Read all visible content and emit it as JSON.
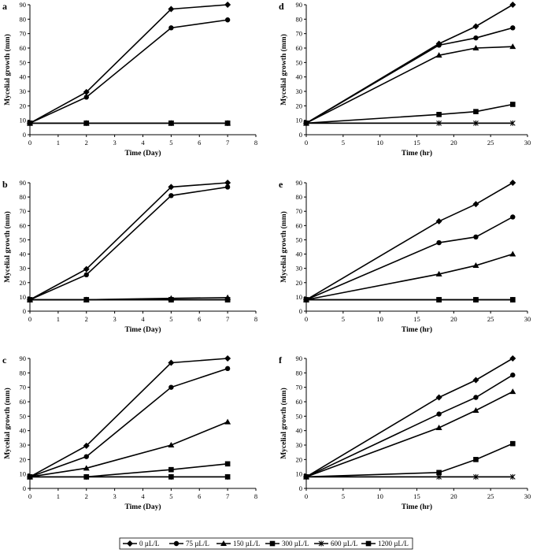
{
  "legend": [
    {
      "name": "0 µL/L",
      "marker": "diamond"
    },
    {
      "name": "75 µL/L",
      "marker": "circle"
    },
    {
      "name": "150 µL/L",
      "marker": "triangle"
    },
    {
      "name": "300 µL/L",
      "marker": "square"
    },
    {
      "name": "600 µL/L",
      "marker": "star"
    },
    {
      "name": "1200 µL/L",
      "marker": "square"
    }
  ],
  "chart_data": [
    {
      "panel": "a",
      "type": "line",
      "xlabel": "Time (Day)",
      "ylabel": "Mycelial growth (mm)",
      "xlim": [
        0,
        8
      ],
      "ylim": [
        0,
        90
      ],
      "xticks": [
        "0",
        "1",
        "2",
        "3",
        "4",
        "5",
        "6",
        "7",
        "8"
      ],
      "yticks": [
        "0",
        "10",
        "20",
        "30",
        "40",
        "50",
        "60",
        "70",
        "80",
        "90"
      ],
      "x": [
        0,
        2,
        5,
        7
      ],
      "series": [
        {
          "name": "0 µL/L",
          "marker": "diamond",
          "values": [
            8,
            29.5,
            87,
            90
          ]
        },
        {
          "name": "75 µL/L",
          "marker": "circle",
          "values": [
            8,
            26,
            74,
            79.5
          ]
        },
        {
          "name": "150 µL/L",
          "marker": "triangle",
          "values": [
            8,
            8,
            8,
            8
          ]
        },
        {
          "name": "300 µL/L",
          "marker": "square",
          "values": [
            8,
            8,
            8,
            8
          ]
        },
        {
          "name": "600 µL/L",
          "marker": "star",
          "values": [
            8,
            8,
            8,
            8
          ]
        },
        {
          "name": "1200 µL/L",
          "marker": "square",
          "values": [
            8,
            8,
            8,
            8
          ]
        }
      ]
    },
    {
      "panel": "b",
      "type": "line",
      "xlabel": "Time (Day)",
      "ylabel": "Mycelial growth (mm)",
      "xlim": [
        0,
        8
      ],
      "ylim": [
        0,
        90
      ],
      "xticks": [
        "0",
        "1",
        "2",
        "3",
        "4",
        "5",
        "6",
        "7",
        "8"
      ],
      "yticks": [
        "0",
        "10",
        "20",
        "30",
        "40",
        "50",
        "60",
        "70",
        "80",
        "90"
      ],
      "x": [
        0,
        2,
        5,
        7
      ],
      "series": [
        {
          "name": "0 µL/L",
          "marker": "diamond",
          "values": [
            8,
            29.5,
            87,
            90
          ]
        },
        {
          "name": "75 µL/L",
          "marker": "circle",
          "values": [
            8,
            25.5,
            81,
            87
          ]
        },
        {
          "name": "150 µL/L",
          "marker": "triangle",
          "values": [
            8,
            8,
            9,
            9.5
          ]
        },
        {
          "name": "300 µL/L",
          "marker": "square",
          "values": [
            8,
            8,
            8,
            8
          ]
        },
        {
          "name": "600 µL/L",
          "marker": "star",
          "values": [
            8,
            8,
            8,
            8
          ]
        },
        {
          "name": "1200 µL/L",
          "marker": "square",
          "values": [
            8,
            8,
            8,
            8
          ]
        }
      ]
    },
    {
      "panel": "c",
      "type": "line",
      "xlabel": "Time (Day)",
      "ylabel": "Mycelial growth (mm)",
      "xlim": [
        0,
        8
      ],
      "ylim": [
        0,
        90
      ],
      "xticks": [
        "0",
        "1",
        "2",
        "3",
        "4",
        "5",
        "6",
        "7",
        "8"
      ],
      "yticks": [
        "0",
        "10",
        "20",
        "30",
        "40",
        "50",
        "60",
        "70",
        "80",
        "90"
      ],
      "x": [
        0,
        2,
        5,
        7
      ],
      "series": [
        {
          "name": "0 µL/L",
          "marker": "diamond",
          "values": [
            8,
            29.5,
            87,
            90
          ]
        },
        {
          "name": "75 µL/L",
          "marker": "circle",
          "values": [
            8,
            22,
            70,
            83
          ]
        },
        {
          "name": "150 µL/L",
          "marker": "triangle",
          "values": [
            8,
            14,
            30,
            46
          ]
        },
        {
          "name": "300 µL/L",
          "marker": "square",
          "values": [
            8,
            8,
            13,
            17
          ]
        },
        {
          "name": "600 µL/L",
          "marker": "star",
          "values": [
            8,
            8,
            8,
            8
          ]
        },
        {
          "name": "1200 µL/L",
          "marker": "square",
          "values": [
            8,
            8,
            8,
            8
          ]
        }
      ]
    },
    {
      "panel": "d",
      "type": "line",
      "xlabel": "Time (hr)",
      "ylabel": "Mycelial growth (mm)",
      "xlim": [
        0,
        30
      ],
      "ylim": [
        0,
        90
      ],
      "xticks": [
        "0",
        "5",
        "10",
        "15",
        "20",
        "25",
        "30"
      ],
      "yticks": [
        "0",
        "10",
        "20",
        "30",
        "40",
        "50",
        "60",
        "70",
        "80",
        "90"
      ],
      "x": [
        0,
        18,
        23,
        28
      ],
      "series": [
        {
          "name": "0 µL/L",
          "marker": "diamond",
          "values": [
            8,
            63,
            75,
            90
          ]
        },
        {
          "name": "75 µL/L",
          "marker": "circle",
          "values": [
            8,
            62,
            67,
            74
          ]
        },
        {
          "name": "150 µL/L",
          "marker": "triangle",
          "values": [
            8,
            55,
            60,
            61
          ]
        },
        {
          "name": "300 µL/L",
          "marker": "square",
          "values": [
            8,
            14,
            16,
            21
          ]
        },
        {
          "name": "600 µL/L",
          "marker": "star",
          "values": [
            8,
            8,
            8,
            8
          ]
        },
        {
          "name": "1200 µL/L",
          "marker": "none",
          "values": [
            8,
            8,
            8,
            8
          ]
        }
      ]
    },
    {
      "panel": "e",
      "type": "line",
      "xlabel": "Time (hr)",
      "ylabel": "Mycelial growth (mm)",
      "xlim": [
        0,
        30
      ],
      "ylim": [
        0,
        90
      ],
      "xticks": [
        "0",
        "5",
        "10",
        "15",
        "20",
        "25",
        "30"
      ],
      "yticks": [
        "0",
        "10",
        "20",
        "30",
        "40",
        "50",
        "60",
        "70",
        "80",
        "90"
      ],
      "x": [
        0,
        18,
        23,
        28
      ],
      "series": [
        {
          "name": "0 µL/L",
          "marker": "diamond",
          "values": [
            8,
            63,
            75,
            90
          ]
        },
        {
          "name": "75 µL/L",
          "marker": "circle",
          "values": [
            8,
            48,
            52,
            66
          ]
        },
        {
          "name": "150 µL/L",
          "marker": "triangle",
          "values": [
            8,
            26,
            32,
            40
          ]
        },
        {
          "name": "300 µL/L",
          "marker": "square",
          "values": [
            8,
            8,
            8,
            8
          ]
        },
        {
          "name": "600 µL/L",
          "marker": "star",
          "values": [
            8,
            8,
            8,
            8
          ]
        },
        {
          "name": "1200 µL/L",
          "marker": "square",
          "values": [
            8,
            8,
            8,
            8
          ]
        }
      ]
    },
    {
      "panel": "f",
      "type": "line",
      "xlabel": "Time (hr)",
      "ylabel": "Mycelial growth (mm)",
      "xlim": [
        0,
        30
      ],
      "ylim": [
        0,
        90
      ],
      "xticks": [
        "0",
        "5",
        "10",
        "15",
        "20",
        "25",
        "30"
      ],
      "yticks": [
        "0",
        "10",
        "20",
        "30",
        "40",
        "50",
        "60",
        "70",
        "80",
        "90"
      ],
      "x": [
        0,
        18,
        23,
        28
      ],
      "series": [
        {
          "name": "0 µL/L",
          "marker": "diamond",
          "values": [
            8,
            63,
            75,
            90
          ]
        },
        {
          "name": "75 µL/L",
          "marker": "circle",
          "values": [
            8,
            51.5,
            63,
            78.5
          ]
        },
        {
          "name": "150 µL/L",
          "marker": "triangle",
          "values": [
            8,
            42,
            54,
            67
          ]
        },
        {
          "name": "300 µL/L",
          "marker": "square",
          "values": [
            8,
            11,
            20,
            31
          ]
        },
        {
          "name": "600 µL/L",
          "marker": "star",
          "values": [
            8,
            8,
            8,
            8
          ]
        },
        {
          "name": "1200 µL/L",
          "marker": "none",
          "values": [
            8,
            8,
            8,
            8
          ]
        }
      ]
    }
  ]
}
